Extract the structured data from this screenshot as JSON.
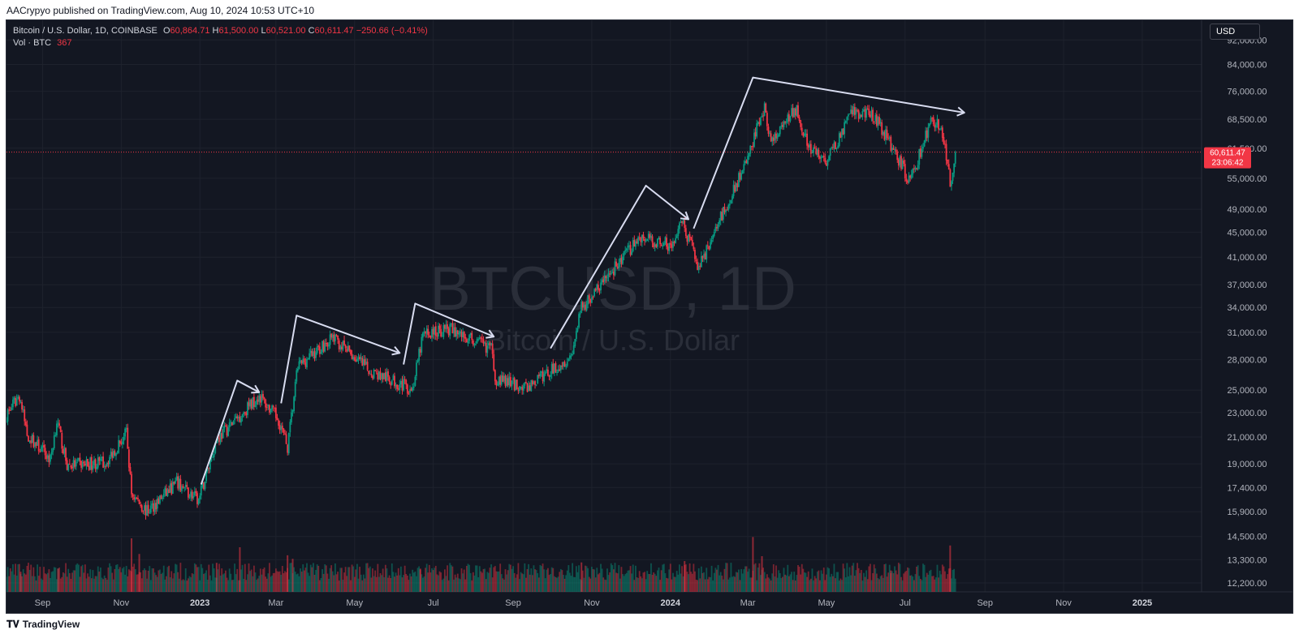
{
  "header": {
    "published_text": "AACrypyo published on TradingView.com, Aug 10, 2024 10:53 UTC+10"
  },
  "legend": {
    "symbol_line": "Bitcoin / U.S. Dollar, 1D, COINBASE",
    "open_label": "O",
    "open": "60,864.71",
    "high_label": "H",
    "high": "61,500.00",
    "low_label": "L",
    "low": "60,521.00",
    "close_label": "C",
    "close": "60,611.47",
    "change": "−250.66 (−0.41%)",
    "volume_label": "Vol · BTC",
    "volume": "367"
  },
  "currency_button": "USD",
  "watermark": {
    "ticker": "BTCUSD, 1D",
    "name": "Bitcoin / U.S. Dollar"
  },
  "price_label": {
    "price": "60,611.47",
    "countdown": "23:06:42"
  },
  "footer": {
    "brand": "TradingView"
  },
  "colors": {
    "background": "#131722",
    "up": "#089981",
    "down": "#f23645",
    "annotation": "#d8dcf0",
    "grid": "#1e222d"
  },
  "chart_data": {
    "type": "candlestick",
    "symbol": "BTCUSD",
    "interval": "1D",
    "exchange": "COINBASE",
    "y_scale": "log",
    "ylim": [
      11800,
      99000
    ],
    "y_ticks": [
      12200,
      13300,
      14500,
      15900,
      17400,
      19000,
      21000,
      23000,
      25000,
      28000,
      31000,
      34000,
      37000,
      41000,
      45000,
      49000,
      55000,
      61500,
      68500,
      76000,
      84000,
      92000
    ],
    "y_tick_labels": [
      "12,200.00",
      "13,300.00",
      "14,500.00",
      "15,900.00",
      "17,400.00",
      "19,000.00",
      "21,000.00",
      "23,000.00",
      "25,000.00",
      "28,000.00",
      "31,000.00",
      "34,000.00",
      "37,000.00",
      "41,000.00",
      "45,000.00",
      "49,000.00",
      "55,000.00",
      "61,500.00",
      "68,500.00",
      "76,000.00",
      "84,000.00",
      "92,000.00"
    ],
    "x_ticks": [
      "Sep",
      "Nov",
      "2023",
      "Mar",
      "May",
      "Jul",
      "Sep",
      "Nov",
      "2024",
      "Mar",
      "May",
      "Jul",
      "Sep",
      "Nov",
      "2025"
    ],
    "bold_x_ticks": [
      "2023",
      "2024",
      "2025"
    ],
    "x_tick_dates": [
      "2022-09-01",
      "2022-11-01",
      "2023-01-01",
      "2023-03-01",
      "2023-05-01",
      "2023-07-01",
      "2023-09-01",
      "2023-11-01",
      "2024-01-01",
      "2024-03-01",
      "2024-05-01",
      "2024-07-01",
      "2024-09-01",
      "2024-11-01",
      "2025-01-01"
    ],
    "xlim": [
      "2022-08-04",
      "2025-02-16"
    ],
    "last_price": 60611.47,
    "close_path": [
      {
        "date": "2022-08-04",
        "close": 22800
      },
      {
        "date": "2022-08-14",
        "close": 24500
      },
      {
        "date": "2022-08-20",
        "close": 21200
      },
      {
        "date": "2022-09-07",
        "close": 19300
      },
      {
        "date": "2022-09-12",
        "close": 22300
      },
      {
        "date": "2022-09-20",
        "close": 18900
      },
      {
        "date": "2022-10-20",
        "close": 19100
      },
      {
        "date": "2022-11-05",
        "close": 21300
      },
      {
        "date": "2022-11-09",
        "close": 17000
      },
      {
        "date": "2022-11-21",
        "close": 15900
      },
      {
        "date": "2022-12-14",
        "close": 17700
      },
      {
        "date": "2022-12-31",
        "close": 16550
      },
      {
        "date": "2023-01-14",
        "close": 20800
      },
      {
        "date": "2023-02-16",
        "close": 24500
      },
      {
        "date": "2023-03-03",
        "close": 22400
      },
      {
        "date": "2023-03-10",
        "close": 20200
      },
      {
        "date": "2023-03-18",
        "close": 27300
      },
      {
        "date": "2023-04-14",
        "close": 30400
      },
      {
        "date": "2023-05-12",
        "close": 26900
      },
      {
        "date": "2023-06-15",
        "close": 25100
      },
      {
        "date": "2023-06-23",
        "close": 30700
      },
      {
        "date": "2023-07-13",
        "close": 31400
      },
      {
        "date": "2023-08-16",
        "close": 29100
      },
      {
        "date": "2023-08-18",
        "close": 26100
      },
      {
        "date": "2023-09-11",
        "close": 25200
      },
      {
        "date": "2023-10-16",
        "close": 28400
      },
      {
        "date": "2023-10-24",
        "close": 33900
      },
      {
        "date": "2023-12-08",
        "close": 44100
      },
      {
        "date": "2024-01-03",
        "close": 42800
      },
      {
        "date": "2024-01-10",
        "close": 46600
      },
      {
        "date": "2024-01-23",
        "close": 39500
      },
      {
        "date": "2024-02-09",
        "close": 47500
      },
      {
        "date": "2024-02-27",
        "close": 57000
      },
      {
        "date": "2024-03-14",
        "close": 72000
      },
      {
        "date": "2024-03-19",
        "close": 62500
      },
      {
        "date": "2024-04-08",
        "close": 71600
      },
      {
        "date": "2024-04-17",
        "close": 61300
      },
      {
        "date": "2024-05-01",
        "close": 58500
      },
      {
        "date": "2024-05-21",
        "close": 70200
      },
      {
        "date": "2024-06-07",
        "close": 69500
      },
      {
        "date": "2024-06-24",
        "close": 60200
      },
      {
        "date": "2024-07-05",
        "close": 54000
      },
      {
        "date": "2024-07-21",
        "close": 68200
      },
      {
        "date": "2024-07-29",
        "close": 66800
      },
      {
        "date": "2024-08-05",
        "close": 54000
      },
      {
        "date": "2024-08-09",
        "close": 60611.47
      }
    ],
    "annotations": [
      {
        "type": "arrow-path",
        "points": [
          {
            "date": "2023-01-02",
            "price": 17600
          },
          {
            "date": "2023-01-30",
            "price": 25900
          },
          {
            "date": "2023-02-16",
            "price": 24800
          }
        ]
      },
      {
        "type": "arrow-path",
        "points": [
          {
            "date": "2023-03-05",
            "price": 23800
          },
          {
            "date": "2023-03-17",
            "price": 33000
          },
          {
            "date": "2023-06-05",
            "price": 28700
          }
        ]
      },
      {
        "type": "arrow-path",
        "points": [
          {
            "date": "2023-06-08",
            "price": 27500
          },
          {
            "date": "2023-06-17",
            "price": 34500
          },
          {
            "date": "2023-08-17",
            "price": 30500
          }
        ]
      },
      {
        "type": "arrow-path",
        "points": [
          {
            "date": "2023-09-30",
            "price": 29200
          },
          {
            "date": "2023-12-13",
            "price": 53500
          },
          {
            "date": "2024-01-15",
            "price": 47200
          }
        ]
      },
      {
        "type": "arrow-path",
        "points": [
          {
            "date": "2024-01-19",
            "price": 45600
          },
          {
            "date": "2024-03-05",
            "price": 80000
          },
          {
            "date": "2024-08-16",
            "price": 70200
          }
        ]
      }
    ],
    "volume": {
      "ylim": [
        0,
        20000
      ],
      "bars": [
        {
          "date": "2022-08-15",
          "value": 4500
        },
        {
          "date": "2022-09-13",
          "value": 5200
        },
        {
          "date": "2022-11-09",
          "value": 12000
        },
        {
          "date": "2022-11-15",
          "value": 8500
        },
        {
          "date": "2023-01-14",
          "value": 6500
        },
        {
          "date": "2023-02-01",
          "value": 10000
        },
        {
          "date": "2023-03-10",
          "value": 8200
        },
        {
          "date": "2023-03-14",
          "value": 7400
        },
        {
          "date": "2023-06-21",
          "value": 5200
        },
        {
          "date": "2023-10-24",
          "value": 6600
        },
        {
          "date": "2024-01-12",
          "value": 6900
        },
        {
          "date": "2024-03-05",
          "value": 12300
        },
        {
          "date": "2024-03-12",
          "value": 8000
        },
        {
          "date": "2024-06-20",
          "value": 4800
        },
        {
          "date": "2024-08-05",
          "value": 10400
        }
      ]
    }
  }
}
